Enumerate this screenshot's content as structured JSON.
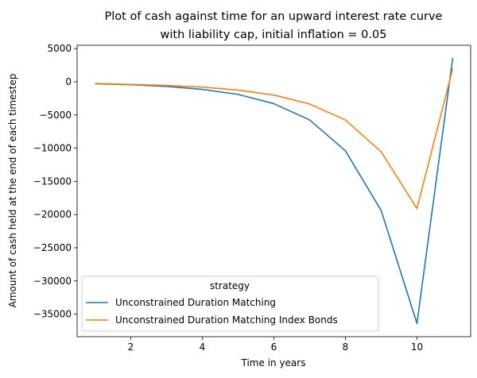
{
  "chart_data": {
    "type": "line",
    "title_line1": "Plot of cash against time for an upward interest rate curve",
    "title_line2": "with liability cap, initial inflation = 0.05",
    "xlabel": "Time in years",
    "ylabel": "Amount of cash held at the end of each timestep",
    "xlim": [
      0.5,
      11.5
    ],
    "ylim": [
      -38400,
      5500
    ],
    "xticks": [
      2,
      4,
      6,
      8,
      10
    ],
    "yticks": [
      5000,
      0,
      -5000,
      -10000,
      -15000,
      -20000,
      -25000,
      -30000,
      -35000
    ],
    "ytick_labels": [
      "5000",
      "0",
      "−5000",
      "−10000",
      "−15000",
      "−20000",
      "−25000",
      "−30000",
      "−35000"
    ],
    "legend": {
      "title": "strategy",
      "placement": "lower-left"
    },
    "x": [
      1,
      2,
      3,
      4,
      5,
      6,
      7,
      8,
      9,
      10,
      11
    ],
    "series": [
      {
        "name": "Unconstrained Duration Matching",
        "color": "#1f77b4",
        "values": [
          -300,
          -450,
          -700,
          -1150,
          -1900,
          -3300,
          -5750,
          -10400,
          -19400,
          -36400,
          3600
        ]
      },
      {
        "name": "Unconstrained Duration Matching Index Bonds",
        "color": "#ff7f0e",
        "values": [
          -250,
          -400,
          -550,
          -800,
          -1250,
          -2000,
          -3350,
          -5750,
          -10550,
          -19100,
          2000
        ]
      }
    ]
  }
}
